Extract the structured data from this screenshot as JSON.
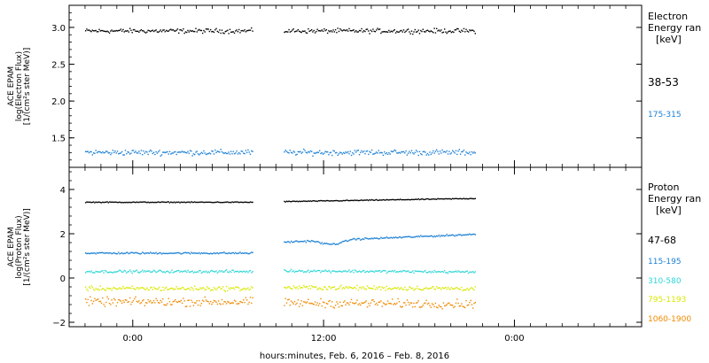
{
  "chart_data": [
    {
      "type": "scatter",
      "panel": "electron",
      "ylabel": [
        "ACE EPAM",
        "log(Electron Flux)",
        "[1/(cm²s ster MeV)]"
      ],
      "ylim": [
        1.1,
        3.3
      ],
      "yticks": [
        1.5,
        2.0,
        2.5,
        3.0
      ],
      "ytick_labels": [
        "1.5",
        "2.0",
        "2.5",
        "3.0"
      ],
      "legend_title": [
        "Electron",
        "Energy ran",
        "[keV]"
      ],
      "series": [
        {
          "name": "38-53",
          "color": "#000000",
          "mean": 2.96,
          "spread": 0.045
        },
        {
          "name": "175-315",
          "color": "#1a7fd4",
          "mean": 1.31,
          "spread": 0.055
        }
      ]
    },
    {
      "type": "scatter",
      "panel": "proton",
      "ylabel": [
        "ACE EPAM",
        "log(Proton Flux)",
        "[1/(cm²s ster MeV)]"
      ],
      "ylim": [
        -2.2,
        5.0
      ],
      "yticks": [
        -2,
        0,
        2,
        4
      ],
      "ytick_labels": [
        "−2",
        "0",
        "2",
        "4"
      ],
      "legend_title": [
        "Proton",
        "Energy ran",
        "[keV]"
      ],
      "series": [
        {
          "name": "47-68",
          "color": "#000000",
          "before": 3.45,
          "after_start": 3.48,
          "after_end": 3.62,
          "spread": 0.03
        },
        {
          "name": "115-195",
          "color": "#1a7fd4",
          "before": 1.15,
          "after_start": 1.65,
          "after_end": 2.0,
          "spread": 0.06
        },
        {
          "name": "310-580",
          "color": "#2fd6d6",
          "before": 0.32,
          "after_start": 0.35,
          "after_end": 0.3,
          "spread": 0.09
        },
        {
          "name": "795-1193",
          "color": "#d9e800",
          "before": -0.45,
          "after_start": -0.4,
          "after_end": -0.45,
          "spread": 0.15
        },
        {
          "name": "1060-1900",
          "color": "#f08a00",
          "before": -1.05,
          "after_start": -1.1,
          "after_end": -1.15,
          "spread": 0.28
        }
      ]
    }
  ],
  "x_axis": {
    "label": "hours:minutes, Feb.  6, 2016 – Feb.  8, 2016",
    "range_hours": [
      -4,
      32
    ],
    "ticks": [
      0,
      12,
      24
    ],
    "tick_labels": [
      "0:00",
      "12:00",
      "0:00"
    ],
    "data_segments": [
      [
        -3,
        7.5
      ],
      [
        9.5,
        21.5
      ]
    ]
  }
}
